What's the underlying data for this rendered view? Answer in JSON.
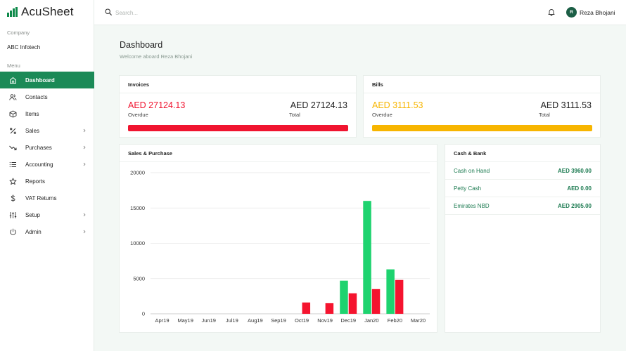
{
  "app": {
    "name": "AcuSheet"
  },
  "sidebar": {
    "company_label": "Company",
    "company_name": "ABC Infotech",
    "menu_label": "Menu",
    "items": [
      {
        "label": "Dashboard",
        "icon": "home-icon",
        "active": true,
        "has_submenu": false
      },
      {
        "label": "Contacts",
        "icon": "users-icon",
        "active": false,
        "has_submenu": false
      },
      {
        "label": "Items",
        "icon": "box-icon",
        "active": false,
        "has_submenu": false
      },
      {
        "label": "Sales",
        "icon": "percent-icon",
        "active": false,
        "has_submenu": true
      },
      {
        "label": "Purchases",
        "icon": "trending-down-icon",
        "active": false,
        "has_submenu": true
      },
      {
        "label": "Accounting",
        "icon": "list-icon",
        "active": false,
        "has_submenu": true
      },
      {
        "label": "Reports",
        "icon": "star-icon",
        "active": false,
        "has_submenu": false
      },
      {
        "label": "VAT Returns",
        "icon": "dollar-icon",
        "active": false,
        "has_submenu": false
      },
      {
        "label": "Setup",
        "icon": "sliders-icon",
        "active": false,
        "has_submenu": true
      },
      {
        "label": "Admin",
        "icon": "power-icon",
        "active": false,
        "has_submenu": true
      }
    ]
  },
  "topbar": {
    "search_placeholder": "Search...",
    "user": {
      "initial": "R",
      "name": "Reza Bhojani"
    }
  },
  "page": {
    "title": "Dashboard",
    "subtitle": "Welcome aboard Reza Bhojani"
  },
  "invoices": {
    "title": "Invoices",
    "overdue_amount": "AED 27124.13",
    "overdue_label": "Overdue",
    "total_amount": "AED 27124.13",
    "total_label": "Total",
    "overdue_fraction": 1.0,
    "color": "#f0142f"
  },
  "bills": {
    "title": "Bills",
    "overdue_amount": "AED 3111.53",
    "overdue_label": "Overdue",
    "total_amount": "AED 3111.53",
    "total_label": "Total",
    "overdue_fraction": 1.0,
    "color": "#f7b500"
  },
  "sales_purchase": {
    "title": "Sales & Purchase"
  },
  "cash_bank": {
    "title": "Cash & Bank",
    "rows": [
      {
        "name": "Cash on Hand",
        "amount": "AED 3960.00"
      },
      {
        "name": "Petty Cash",
        "amount": "AED 0.00"
      },
      {
        "name": "Emirates NBD",
        "amount": "AED 2905.00"
      }
    ]
  },
  "colors": {
    "accent": "#1b8a57",
    "sales": "#1ed36f",
    "purchase": "#f5142f"
  },
  "chart_data": {
    "type": "bar",
    "categories": [
      "Apr19",
      "May19",
      "Jun19",
      "Jul19",
      "Aug19",
      "Sep19",
      "Oct19",
      "Nov19",
      "Dec19",
      "Jan20",
      "Feb20",
      "Mar20"
    ],
    "series": [
      {
        "values": [
          0,
          0,
          0,
          0,
          0,
          0,
          0,
          0,
          4700,
          16000,
          6300,
          0
        ],
        "color": "#1ed36f"
      },
      {
        "values": [
          0,
          0,
          0,
          0,
          0,
          0,
          1600,
          1500,
          2900,
          3500,
          4800,
          0
        ],
        "color": "#f5142f"
      }
    ],
    "yticks": [
      "0",
      "5000",
      "10000",
      "15000",
      "20000"
    ],
    "ylim": [
      0,
      20000
    ],
    "grid": true
  }
}
